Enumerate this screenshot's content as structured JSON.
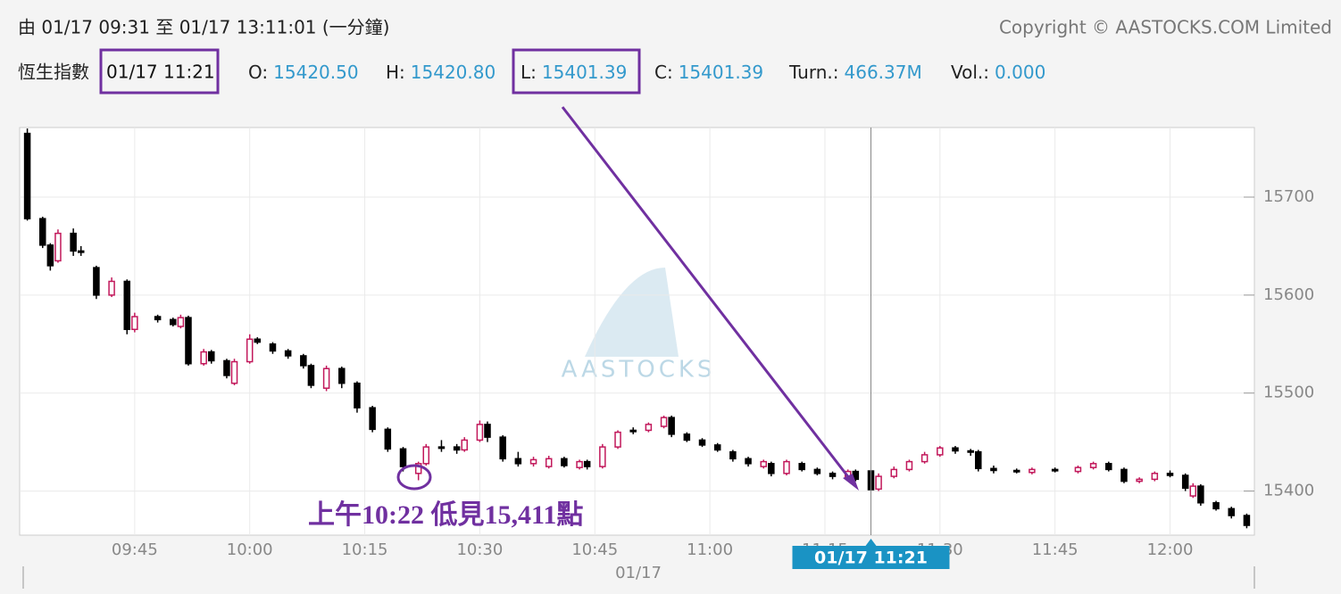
{
  "header": {
    "range": "由 01/17 09:31 至 01/17 13:11:01 (一分鐘)",
    "copyright": "Copyright © AASTOCKS.COM Limited",
    "index": "恆生指數",
    "time": "01/17 11:21",
    "fields": [
      {
        "label": "O:",
        "value": "15420.50"
      },
      {
        "label": "H:",
        "value": "15420.80"
      },
      {
        "label": "L:",
        "value": "15401.39"
      },
      {
        "label": "C:",
        "value": "15401.39"
      },
      {
        "label": "Turn.:",
        "value": "466.37M"
      },
      {
        "label": "Vol.:",
        "value": "0.000"
      }
    ]
  },
  "chart_data": {
    "type": "candlestick",
    "watermark": "AASTOCKS",
    "annotation": "上午10:22 低見15,411點",
    "crosshair": "01/17 11:21",
    "xlabel": "01/17",
    "up_color": "#c2185b",
    "down_color": "#000000",
    "grid": true,
    "xlim": [
      "09:30",
      "12:11"
    ],
    "xticks": [
      "09:45",
      "10:00",
      "10:15",
      "10:30",
      "10:45",
      "11:00",
      "11:15",
      "11:30",
      "11:45",
      "12:00"
    ],
    "ylim": [
      15355,
      15771
    ],
    "yticks": [
      15400,
      15500,
      15600,
      15700
    ],
    "x": [
      "09:31",
      "09:33",
      "09:34",
      "09:35",
      "09:37",
      "09:38",
      "09:40",
      "09:42",
      "09:44",
      "09:45",
      "09:48",
      "09:50",
      "09:51",
      "09:52",
      "09:54",
      "09:55",
      "09:57",
      "09:58",
      "10:00",
      "10:01",
      "10:03",
      "10:05",
      "10:07",
      "10:08",
      "10:10",
      "10:12",
      "10:14",
      "10:16",
      "10:18",
      "10:20",
      "10:22",
      "10:23",
      "10:25",
      "10:27",
      "10:28",
      "10:30",
      "10:31",
      "10:33",
      "10:35",
      "10:37",
      "10:39",
      "10:41",
      "10:43",
      "10:44",
      "10:46",
      "10:48",
      "10:50",
      "10:52",
      "10:54",
      "10:55",
      "10:57",
      "10:59",
      "11:01",
      "11:03",
      "11:05",
      "11:07",
      "11:08",
      "11:10",
      "11:12",
      "11:14",
      "11:16",
      "11:18",
      "11:19",
      "11:21",
      "11:22",
      "11:24",
      "11:26",
      "11:28",
      "11:30",
      "11:32",
      "11:34",
      "11:35",
      "11:37",
      "11:40",
      "11:42",
      "11:45",
      "11:48",
      "11:50",
      "11:52",
      "11:54",
      "11:56",
      "11:58",
      "12:00",
      "12:02",
      "12:03",
      "12:04",
      "12:06",
      "12:08",
      "12:10"
    ],
    "open": [
      15765,
      15678,
      15651,
      15635,
      15663,
      15645,
      15628,
      15600,
      15614,
      15565,
      15578,
      15575,
      15568,
      15577,
      15530,
      15542,
      15533,
      15510,
      15532,
      15555,
      15550,
      15543,
      15538,
      15528,
      15505,
      15525,
      15510,
      15485,
      15463,
      15443,
      15418,
      15428,
      15445,
      15445,
      15442,
      15452,
      15468,
      15455,
      15433,
      15428,
      15425,
      15433,
      15424,
      15430,
      15425,
      15445,
      15462,
      15462,
      15466,
      15475,
      15458,
      15452,
      15447,
      15440,
      15433,
      15425,
      15428,
      15418,
      15428,
      15422,
      15418,
      15414,
      15420,
      15420.5,
      15402,
      15415,
      15422,
      15430,
      15437,
      15444,
      15441,
      15440,
      15423,
      15421,
      15419,
      15422,
      15420,
      15424,
      15428,
      15422,
      15410,
      15412,
      15418,
      15416,
      15395,
      15405,
      15388,
      15382,
      15375
    ],
    "high": [
      15770,
      15680,
      15653,
      15667,
      15668,
      15650,
      15630,
      15618,
      15616,
      15582,
      15580,
      15577,
      15580,
      15579,
      15545,
      15544,
      15535,
      15535,
      15560,
      15557,
      15552,
      15545,
      15540,
      15530,
      15528,
      15527,
      15512,
      15487,
      15465,
      15445,
      15430,
      15448,
      15452,
      15448,
      15455,
      15472,
      15471,
      15457,
      15440,
      15435,
      15436,
      15435,
      15432,
      15432,
      15448,
      15462,
      15465,
      15470,
      15477,
      15477,
      15460,
      15454,
      15449,
      15442,
      15435,
      15432,
      15430,
      15432,
      15430,
      15424,
      15420,
      15422,
      15422,
      15420.8,
      15418,
      15425,
      15432,
      15440,
      15446,
      15446,
      15443,
      15442,
      15426,
      15423,
      15424,
      15424,
      15426,
      15430,
      15430,
      15424,
      15414,
      15420,
      15421,
      15418,
      15408,
      15407,
      15390,
      15384,
      15377
    ],
    "low": [
      15676,
      15648,
      15625,
      15633,
      15640,
      15640,
      15596,
      15598,
      15560,
      15562,
      15572,
      15568,
      15566,
      15528,
      15528,
      15530,
      15515,
      15508,
      15530,
      15550,
      15540,
      15535,
      15525,
      15505,
      15502,
      15505,
      15480,
      15460,
      15440,
      15420,
      15411,
      15426,
      15440,
      15438,
      15440,
      15450,
      15450,
      15430,
      15425,
      15425,
      15423,
      15424,
      15422,
      15422,
      15423,
      15443,
      15458,
      15460,
      15464,
      15455,
      15450,
      15445,
      15440,
      15430,
      15425,
      15423,
      15415,
      15416,
      15420,
      15416,
      15412,
      15412,
      15410,
      15401.39,
      15400,
      15413,
      15420,
      15428,
      15435,
      15438,
      15436,
      15420,
      15418,
      15418,
      15417,
      15419,
      15418,
      15422,
      15420,
      15408,
      15408,
      15410,
      15414,
      15400,
      15393,
      15385,
      15380,
      15372,
      15362
    ],
    "close": [
      15678,
      15651,
      15630,
      15663,
      15645,
      15644,
      15600,
      15614,
      15565,
      15578,
      15575,
      15570,
      15577,
      15530,
      15542,
      15533,
      15518,
      15532,
      15555,
      15552,
      15543,
      15538,
      15528,
      15508,
      15525,
      15510,
      15485,
      15463,
      15443,
      15425,
      15428,
      15445,
      15445,
      15442,
      15452,
      15468,
      15455,
      15433,
      15428,
      15432,
      15433,
      15426,
      15430,
      15425,
      15445,
      15460,
      15462,
      15468,
      15475,
      15458,
      15452,
      15447,
      15442,
      15433,
      15428,
      15430,
      15418,
      15430,
      15422,
      15418,
      15415,
      15420,
      15412,
      15401.39,
      15415,
      15422,
      15430,
      15437,
      15444,
      15441,
      15440,
      15423,
      15421,
      15420,
      15422,
      15421,
      15424,
      15428,
      15422,
      15410,
      15412,
      15418,
      15416,
      15403,
      15405,
      15388,
      15382,
      15375,
      15365
    ]
  }
}
